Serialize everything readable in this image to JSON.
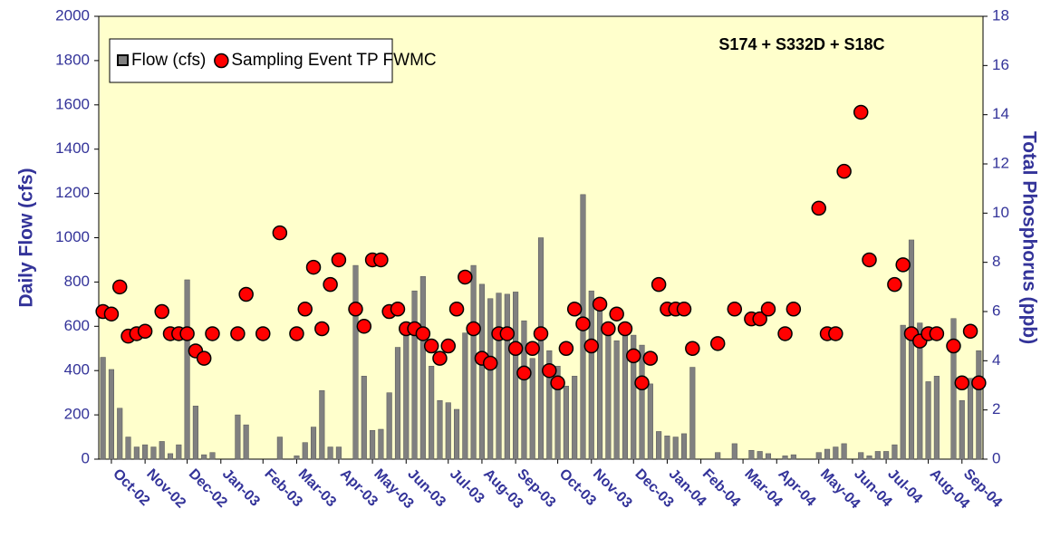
{
  "chart_data": {
    "type": "bar",
    "title": "S174 + S332D + S18C",
    "y_label": "Daily Flow (cfs)",
    "y2_label": "Total Phosphorus (ppb)",
    "legend": "upper left",
    "categories": [
      null,
      "Oct-02",
      null,
      null,
      null,
      "Nov-02",
      null,
      null,
      null,
      null,
      "Dec-02",
      null,
      null,
      null,
      "Jan-03",
      null,
      null,
      null,
      null,
      "Feb-03",
      null,
      null,
      null,
      "Mar-03",
      null,
      null,
      null,
      null,
      "Apr-03",
      null,
      null,
      null,
      "May-03",
      null,
      null,
      null,
      "Jun-03",
      null,
      null,
      null,
      null,
      "Jul-03",
      null,
      null,
      null,
      "Aug-03",
      null,
      null,
      null,
      "Sep-03",
      null,
      null,
      null,
      null,
      "Oct-03",
      null,
      null,
      null,
      "Nov-03",
      null,
      null,
      null,
      null,
      "Dec-03",
      null,
      null,
      null,
      "Jan-04",
      null,
      null,
      null,
      "Feb-04",
      null,
      null,
      null,
      null,
      "Mar-04",
      null,
      null,
      null,
      "Apr-04",
      null,
      null,
      null,
      null,
      "May-04",
      null,
      null,
      null,
      "Jun-04",
      null,
      null,
      null,
      "Jul-04",
      null,
      null,
      null,
      null,
      "Aug-04",
      null,
      null,
      null,
      "Sep-04",
      null,
      null
    ],
    "series": [
      {
        "name": "Flow (cfs)",
        "type": "bar",
        "color": "#808080",
        "values": [
          460,
          405,
          230,
          100,
          55,
          65,
          55,
          80,
          25,
          65,
          810,
          240,
          20,
          30,
          null,
          null,
          200,
          155,
          null,
          null,
          null,
          100,
          null,
          15,
          75,
          145,
          310,
          55,
          55,
          null,
          875,
          375,
          130,
          135,
          300,
          505,
          580,
          760,
          825,
          420,
          265,
          255,
          225,
          570,
          875,
          790,
          725,
          750,
          745,
          755,
          625,
          455,
          1000,
          490,
          420,
          330,
          375,
          1195,
          760,
          690,
          600,
          535,
          590,
          560,
          515,
          340,
          125,
          105,
          100,
          115,
          415,
          null,
          null,
          30,
          null,
          70,
          null,
          40,
          35,
          25,
          null,
          15,
          20,
          null,
          null,
          30,
          45,
          55,
          70,
          null,
          30,
          15,
          35,
          35,
          65,
          605,
          990,
          615,
          350,
          375,
          null,
          635,
          265,
          365,
          490
        ]
      },
      {
        "name": "Sampling Event TP FWMC",
        "type": "scatter",
        "color": "#ff0000",
        "axis": "y2",
        "values": [
          6.0,
          5.9,
          7.0,
          5.0,
          5.1,
          5.2,
          null,
          6.0,
          5.1,
          5.1,
          5.1,
          4.4,
          4.1,
          5.1,
          null,
          null,
          5.1,
          6.7,
          null,
          5.1,
          null,
          9.2,
          null,
          5.1,
          6.1,
          7.8,
          5.3,
          7.1,
          8.1,
          null,
          6.1,
          5.4,
          8.1,
          8.1,
          6.0,
          6.1,
          5.3,
          5.3,
          5.1,
          4.6,
          4.1,
          4.6,
          6.1,
          7.4,
          5.3,
          4.1,
          3.9,
          5.1,
          5.1,
          4.5,
          3.5,
          4.5,
          5.1,
          3.6,
          3.1,
          4.5,
          6.1,
          5.5,
          4.6,
          6.3,
          5.3,
          5.9,
          5.3,
          4.2,
          3.1,
          4.1,
          7.1,
          6.1,
          6.1,
          6.1,
          4.5,
          null,
          null,
          4.7,
          null,
          6.1,
          null,
          5.7,
          5.7,
          6.1,
          null,
          5.1,
          6.1,
          null,
          null,
          10.2,
          5.1,
          5.1,
          11.7,
          null,
          14.1,
          8.1,
          null,
          null,
          7.1,
          7.9,
          5.1,
          4.8,
          5.1,
          5.1,
          null,
          4.6,
          3.1,
          5.2,
          3.1
        ]
      }
    ],
    "ylim": [
      0,
      2000
    ],
    "yticks": [
      0,
      200,
      400,
      600,
      800,
      1000,
      1200,
      1400,
      1600,
      1800,
      2000
    ],
    "y2lim": [
      0,
      18
    ],
    "y2ticks": [
      0,
      2,
      4,
      6,
      8,
      10,
      12,
      14,
      16,
      18
    ],
    "background": "#ffffcc"
  }
}
